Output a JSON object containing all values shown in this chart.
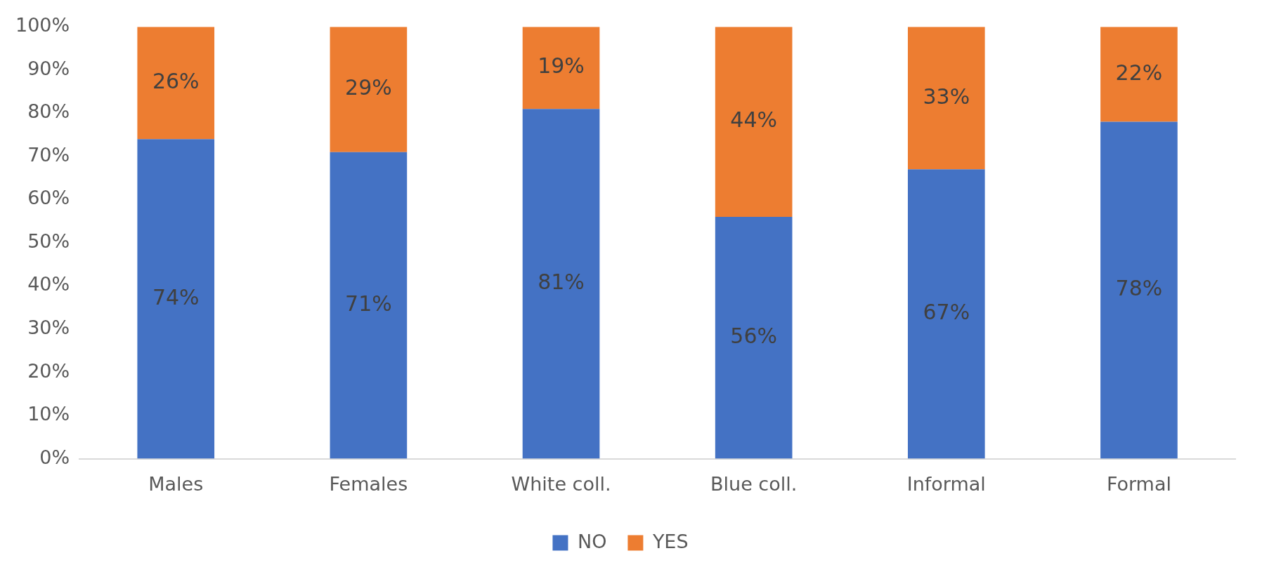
{
  "chart_data": {
    "type": "bar",
    "stacked": true,
    "categories": [
      "Males",
      "Females",
      "White coll.",
      "Blue coll.",
      "Informal",
      "Formal"
    ],
    "series": [
      {
        "name": "NO",
        "color": "#4472c4",
        "values": [
          74,
          71,
          81,
          56,
          67,
          78
        ],
        "value_labels": [
          "74%",
          "71%",
          "81%",
          "56%",
          "67%",
          "78%"
        ]
      },
      {
        "name": "YES",
        "color": "#ed7d31",
        "values": [
          26,
          29,
          19,
          44,
          33,
          22
        ],
        "value_labels": [
          "26%",
          "29%",
          "19%",
          "44%",
          "33%",
          "22%"
        ]
      }
    ],
    "ylim": [
      0,
      100
    ],
    "yticks": [
      {
        "value": 0,
        "label": "0%"
      },
      {
        "value": 10,
        "label": "10%"
      },
      {
        "value": 20,
        "label": "20%"
      },
      {
        "value": 30,
        "label": "30%"
      },
      {
        "value": 40,
        "label": "40%"
      },
      {
        "value": 50,
        "label": "50%"
      },
      {
        "value": 60,
        "label": "60%"
      },
      {
        "value": 70,
        "label": "70%"
      },
      {
        "value": 80,
        "label": "80%"
      },
      {
        "value": 90,
        "label": "90%"
      },
      {
        "value": 100,
        "label": "100%"
      }
    ],
    "grid": false,
    "legend": "bottom"
  }
}
